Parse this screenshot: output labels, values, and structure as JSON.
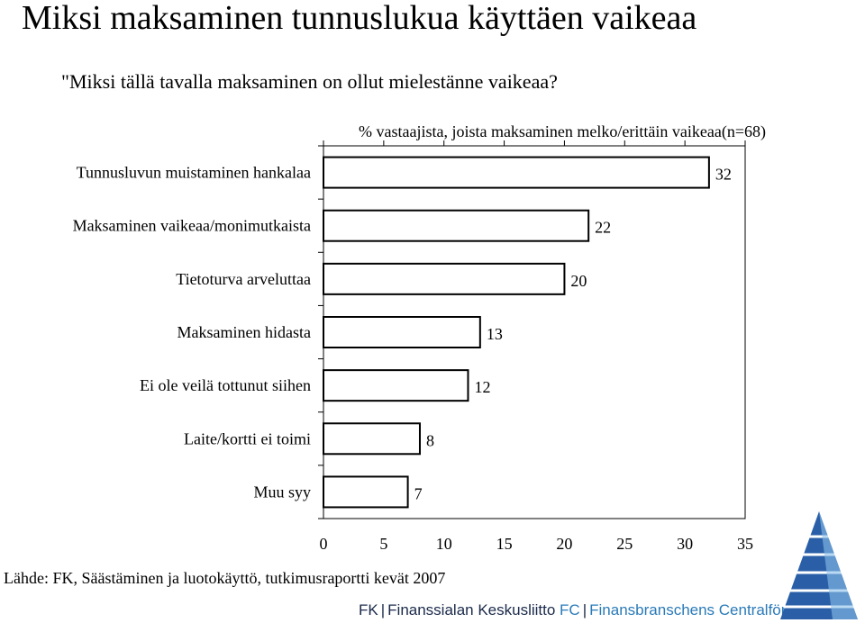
{
  "page": {
    "title": "Miksi maksaminen tunnuslukua käyttäen vaikeaa",
    "question": "\"Miksi tällä tavalla maksaminen on ollut mielestänne vaikeaa?",
    "source": "Lähde: FK, Säästäminen ja luotokäyttö, tutkimusraportti kevät 2007"
  },
  "footer": {
    "fk_abbr": "FK",
    "fk_name": "Finanssialan Keskusliitto",
    "fc_abbr": "FC",
    "fc_name": "Finansbranschens Centralförbund"
  },
  "chart_data": {
    "type": "bar",
    "orientation": "horizontal",
    "title": "% vastaajista, joista maksaminen melko/erittäin vaikeaa(n=68)",
    "categories": [
      "Tunnusluvun muistaminen hankalaa",
      "Maksaminen vaikeaa/monimutkaista",
      "Tietoturva arveluttaa",
      "Maksaminen hidasta",
      "Ei ole veilä tottunut siihen",
      "Laite/kortti ei toimi",
      "Muu syy"
    ],
    "values": [
      32,
      22,
      20,
      13,
      12,
      8,
      7
    ],
    "data_labels": [
      "32",
      "22",
      "20",
      "13",
      "12",
      "8",
      "7"
    ],
    "xlim": [
      0,
      35
    ],
    "xticks": [
      0,
      5,
      10,
      15,
      20,
      25,
      30,
      35
    ],
    "xtick_labels": [
      "0",
      "5",
      "10",
      "15",
      "20",
      "25",
      "30",
      "35"
    ],
    "xlabel": "",
    "ylabel": "",
    "grid": false,
    "legend": "none",
    "colors": {
      "bar_fill": "#ffffff",
      "bar_stroke": "#000000",
      "axis": "#000000"
    }
  },
  "logo": {
    "colors": [
      "#2a5fa8",
      "#4a8fd0",
      "#8cc0ea"
    ]
  }
}
